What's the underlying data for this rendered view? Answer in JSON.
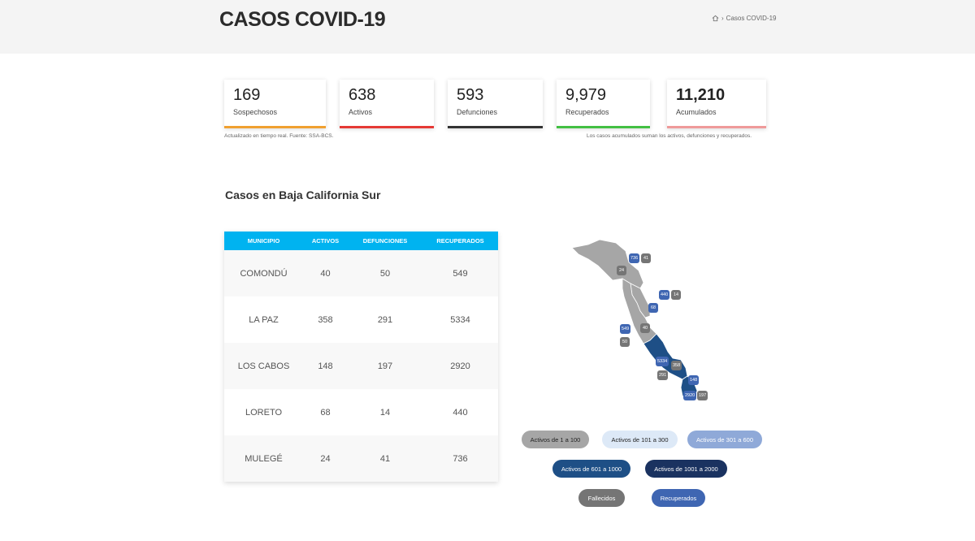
{
  "header": {
    "title": "CASOS COVID-19",
    "breadcrumb": {
      "current": "Casos COVID-19"
    }
  },
  "stats": [
    {
      "value": "169",
      "label": "Sospechosos",
      "color": "#f0a030"
    },
    {
      "value": "638",
      "label": "Activos",
      "color": "#e53935"
    },
    {
      "value": "593",
      "label": "Defunciones",
      "color": "#333333"
    },
    {
      "value": "9,979",
      "label": "Recuperados",
      "color": "#43c043"
    },
    {
      "value": "11,210",
      "label": "Acumulados",
      "color": "#ef9a9a"
    }
  ],
  "notes": {
    "source": "Actualizado en tiempo real. Fuente: SSA-BCS.",
    "explanation": "Los casos acumulados suman los activos, defunciones y recuperados."
  },
  "section_title": "Casos en Baja California Sur",
  "table": {
    "headers": [
      "MUNICIPIO",
      "ACTIVOS",
      "DEFUNCIONES",
      "RECUPERADOS"
    ],
    "rows": [
      [
        "COMONDÚ",
        "40",
        "50",
        "549"
      ],
      [
        "LA PAZ",
        "358",
        "291",
        "5334"
      ],
      [
        "LOS CABOS",
        "148",
        "197",
        "2920"
      ],
      [
        "LORETO",
        "68",
        "14",
        "440"
      ],
      [
        "MULEGÉ",
        "24",
        "41",
        "736"
      ]
    ]
  },
  "map": {
    "markers": {
      "mulege_rec": "736",
      "mulege_dead": "41",
      "mulege_act": "24",
      "loreto_rec": "440",
      "loreto_dead": "14",
      "loreto_act": "68",
      "comondu_rec": "549",
      "comondu_dead": "50",
      "comondu_act": "40",
      "lapaz_rec": "5334",
      "lapaz_dead": "291",
      "lapaz_act": "358",
      "loscabos_rec": "2920",
      "loscabos_dead": "197",
      "loscabos_act": "148"
    },
    "colors": {
      "gray": "#a6a6a6",
      "blue": "#1e4f86",
      "recuperados": "#3f66b2",
      "fallecidos": "#757575"
    }
  },
  "legend": {
    "range1": "Activos de 1 a 100",
    "range2": "Activos de 101 a 300",
    "range3": "Activos de 301 a 600",
    "range4": "Activos de 601 a 1000",
    "range5": "Activos de 1001 a 2000",
    "fallecidos": "Fallecidos",
    "recuperados": "Recuperados"
  }
}
